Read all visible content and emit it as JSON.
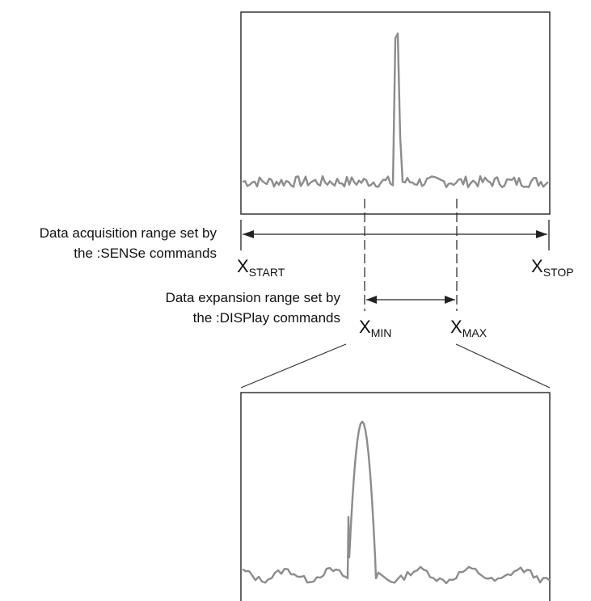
{
  "acquisition_range": {
    "label_line1": "Data acquisition range set by",
    "label_line2": "the :SENSe commands"
  },
  "expansion_range": {
    "label_line1": "Data expansion range set by",
    "label_line2": "the :DISPlay commands"
  },
  "markers": {
    "symbol": "X",
    "start": "START",
    "stop": "STOP",
    "min": "MIN",
    "max": "MAX"
  },
  "colors": {
    "trace": "#8c8c8c",
    "frame": "#333333",
    "lines": "#222222"
  }
}
